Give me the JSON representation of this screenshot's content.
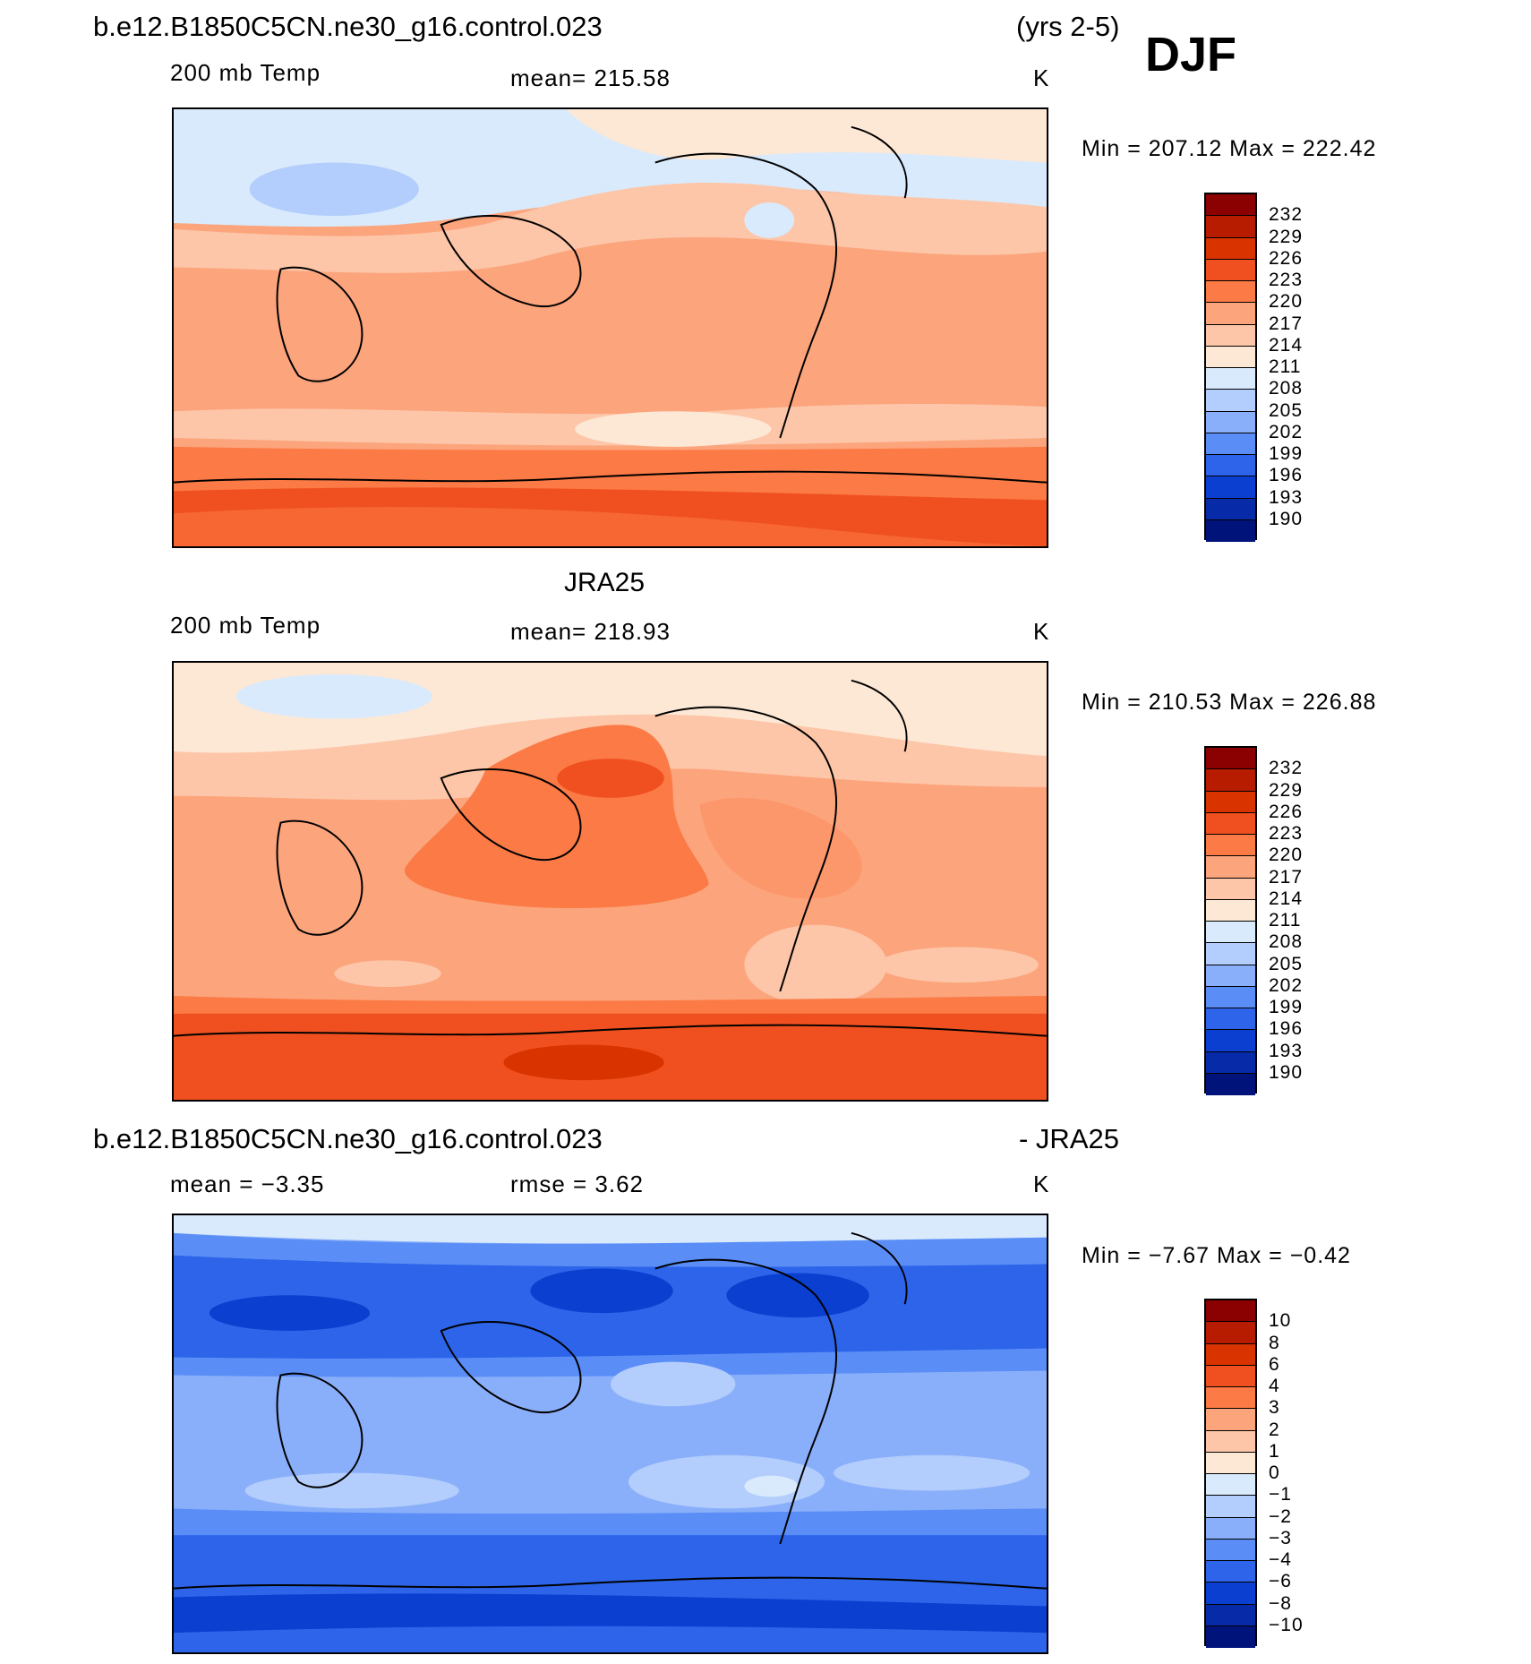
{
  "header": {
    "case_title": "b.e12.B1850C5CN.ne30_g16.control.023",
    "years": "(yrs 2-5)",
    "season": "DJF"
  },
  "panels": [
    {
      "id": "model",
      "title": "",
      "left_label": "200 mb Temp",
      "center_label": "mean= 215.58",
      "units": "K",
      "minmax": "Min = 207.12 Max = 222.42"
    },
    {
      "id": "obs",
      "title": "JRA25",
      "left_label": "200 mb Temp",
      "center_label": "mean= 218.93",
      "units": "K",
      "minmax": "Min = 210.53 Max = 226.88"
    },
    {
      "id": "diff",
      "title": "b.e12.B1850C5CN.ne30_g16.control.023",
      "title_right": "- JRA25",
      "left_label": "mean =   −3.35",
      "center_label": "rmse =    3.62",
      "units": "K",
      "minmax": "Min =   −7.67 Max =   −0.42"
    }
  ],
  "colorbars": {
    "temp_labels": [
      "232",
      "229",
      "226",
      "223",
      "220",
      "217",
      "214",
      "211",
      "208",
      "205",
      "202",
      "199",
      "196",
      "193",
      "190"
    ],
    "diff_labels": [
      "10",
      "8",
      "6",
      "4",
      "3",
      "2",
      "1",
      "0",
      "−1",
      "−2",
      "−3",
      "−4",
      "−6",
      "−8",
      "−10"
    ],
    "colors": [
      "#8b0000",
      "#b81c00",
      "#d93400",
      "#f05020",
      "#fb7a45",
      "#fca47c",
      "#fdc6a8",
      "#fde8d6",
      "#d9eafc",
      "#b3cdfc",
      "#8aaffa",
      "#5a8ef6",
      "#2d64ea",
      "#0a3fcf",
      "#062aa8",
      "#00137a"
    ]
  }
}
